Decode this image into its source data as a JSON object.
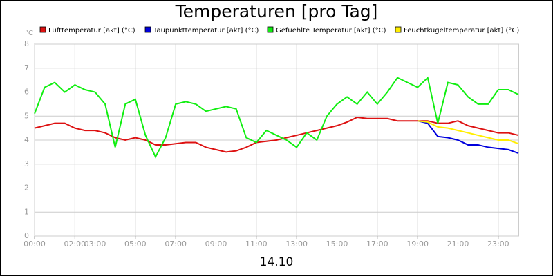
{
  "chart_data": {
    "type": "line",
    "title": "Temperaturen [pro Tag]",
    "x_label": "14.10",
    "y_label": "°C",
    "x": [
      0,
      0.5,
      1,
      1.5,
      2,
      2.5,
      3,
      3.5,
      4,
      4.5,
      5,
      5.5,
      6,
      6.5,
      7,
      7.5,
      8,
      8.5,
      9,
      9.5,
      10,
      10.5,
      11,
      11.5,
      12,
      12.5,
      13,
      13.5,
      14,
      14.5,
      15,
      15.5,
      16,
      16.5,
      17,
      17.5,
      18,
      18.5,
      19,
      19.5,
      20,
      20.5,
      21,
      21.5,
      22,
      22.5,
      23,
      23.5,
      24
    ],
    "xlim": [
      0,
      24
    ],
    "xticks": [
      {
        "value": 0,
        "label": "00:00"
      },
      {
        "value": 2,
        "label": "02:00"
      },
      {
        "value": 3,
        "label": "03:00"
      },
      {
        "value": 5,
        "label": "05:00"
      },
      {
        "value": 7,
        "label": "07:00"
      },
      {
        "value": 9,
        "label": "09:00"
      },
      {
        "value": 11,
        "label": "11:00"
      },
      {
        "value": 13,
        "label": "13:00"
      },
      {
        "value": 15,
        "label": "15:00"
      },
      {
        "value": 17,
        "label": "17:00"
      },
      {
        "value": 19,
        "label": "19:00"
      },
      {
        "value": 21,
        "label": "21:00"
      },
      {
        "value": 23,
        "label": "23:00"
      }
    ],
    "ylim": [
      0,
      8
    ],
    "yticks": [
      0,
      1,
      2,
      3,
      4,
      5,
      6,
      7,
      8
    ],
    "grid": true,
    "series": [
      {
        "name": "Lufttemperatur [akt] (°C)",
        "color": "#dd1111",
        "values": [
          4.5,
          4.6,
          4.7,
          4.7,
          4.5,
          4.4,
          4.4,
          4.3,
          4.1,
          4.0,
          4.1,
          4.0,
          3.8,
          3.8,
          3.85,
          3.9,
          3.9,
          3.7,
          3.6,
          3.5,
          3.55,
          3.7,
          3.9,
          3.95,
          4.0,
          4.1,
          4.2,
          4.3,
          4.4,
          4.5,
          4.6,
          4.75,
          4.95,
          4.9,
          4.9,
          4.9,
          4.8,
          4.8,
          4.8,
          4.8,
          4.7,
          4.7,
          4.8,
          4.6,
          4.5,
          4.4,
          4.3,
          4.3,
          4.2
        ]
      },
      {
        "name": "Taupunkttemperatur [akt] (°C)",
        "color": "#0000dd",
        "values": [
          null,
          null,
          null,
          null,
          null,
          null,
          null,
          null,
          null,
          null,
          null,
          null,
          null,
          null,
          null,
          null,
          null,
          null,
          null,
          null,
          null,
          null,
          null,
          null,
          null,
          null,
          null,
          null,
          null,
          null,
          null,
          null,
          null,
          null,
          null,
          null,
          null,
          null,
          4.8,
          4.7,
          4.15,
          4.1,
          4.0,
          3.8,
          3.8,
          3.7,
          3.65,
          3.6,
          3.45
        ]
      },
      {
        "name": "Gefuehlte Temperatur [akt] (°C)",
        "color": "#11ee11",
        "values": [
          5.1,
          6.2,
          6.4,
          6.0,
          6.3,
          6.1,
          6.0,
          5.5,
          3.7,
          5.5,
          5.7,
          4.2,
          3.3,
          4.1,
          5.5,
          5.6,
          5.5,
          5.2,
          5.3,
          5.4,
          5.3,
          4.1,
          3.9,
          4.4,
          4.2,
          4.0,
          3.7,
          4.3,
          4.0,
          5.0,
          5.5,
          5.8,
          5.5,
          6.0,
          5.5,
          6.0,
          6.6,
          6.4,
          6.2,
          6.6,
          4.7,
          6.4,
          6.3,
          5.8,
          5.5,
          5.5,
          6.1,
          6.1,
          5.9
        ]
      },
      {
        "name": "Feuchtkugeltemperatur [akt] (°C)",
        "color": "#ffee00",
        "values": [
          null,
          null,
          null,
          null,
          null,
          null,
          null,
          null,
          null,
          null,
          null,
          null,
          null,
          null,
          null,
          null,
          null,
          null,
          null,
          null,
          null,
          null,
          null,
          null,
          null,
          null,
          null,
          null,
          null,
          null,
          null,
          null,
          null,
          null,
          null,
          null,
          null,
          null,
          4.8,
          4.75,
          4.55,
          4.5,
          4.4,
          4.3,
          4.2,
          4.1,
          4.0,
          4.0,
          3.85
        ]
      }
    ]
  }
}
